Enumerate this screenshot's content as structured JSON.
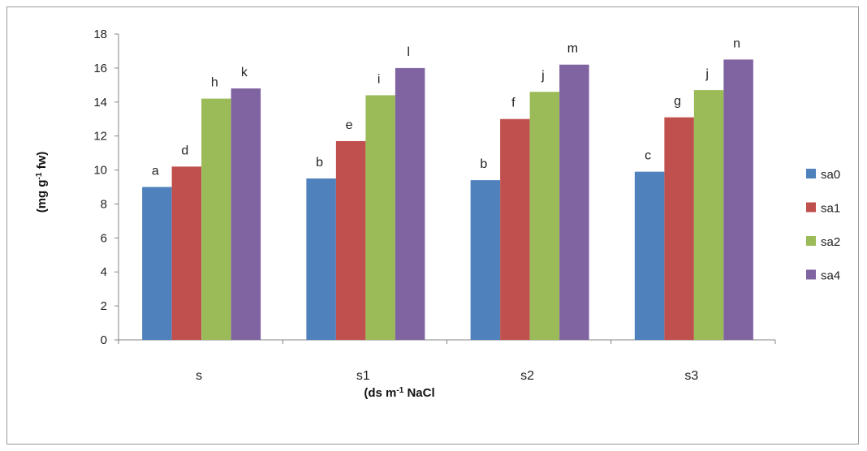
{
  "chart_data": {
    "type": "bar",
    "categories": [
      "s",
      "s1",
      "s2",
      "s3"
    ],
    "series": [
      {
        "name": "sa0",
        "color": "#4F81BD",
        "values": [
          9.0,
          9.5,
          9.4,
          9.9
        ],
        "labels": [
          "a",
          "b",
          "b",
          "c"
        ]
      },
      {
        "name": "sa1",
        "color": "#C0504D",
        "values": [
          10.2,
          11.7,
          13.0,
          13.1
        ],
        "labels": [
          "d",
          "e",
          "f",
          "g"
        ]
      },
      {
        "name": "sa2",
        "color": "#9BBB59",
        "values": [
          14.2,
          14.4,
          14.6,
          14.7
        ],
        "labels": [
          "h",
          "i",
          "j",
          "j"
        ]
      },
      {
        "name": "sa4",
        "color": "#8064A2",
        "values": [
          14.8,
          16.0,
          16.2,
          16.5
        ],
        "labels": [
          "k",
          "l",
          "m",
          "n"
        ]
      }
    ],
    "ylabel_main": "(mg g",
    "ylabel_sup": "-1",
    "ylabel_tail": " fw)",
    "xlabel_main": "(ds m",
    "xlabel_sup": "-1",
    "xlabel_tail": " NaCl",
    "ylim": [
      0,
      18
    ],
    "yticks": [
      0,
      2,
      4,
      6,
      8,
      10,
      12,
      14,
      16,
      18
    ],
    "grid": false,
    "legend_position": "right"
  }
}
